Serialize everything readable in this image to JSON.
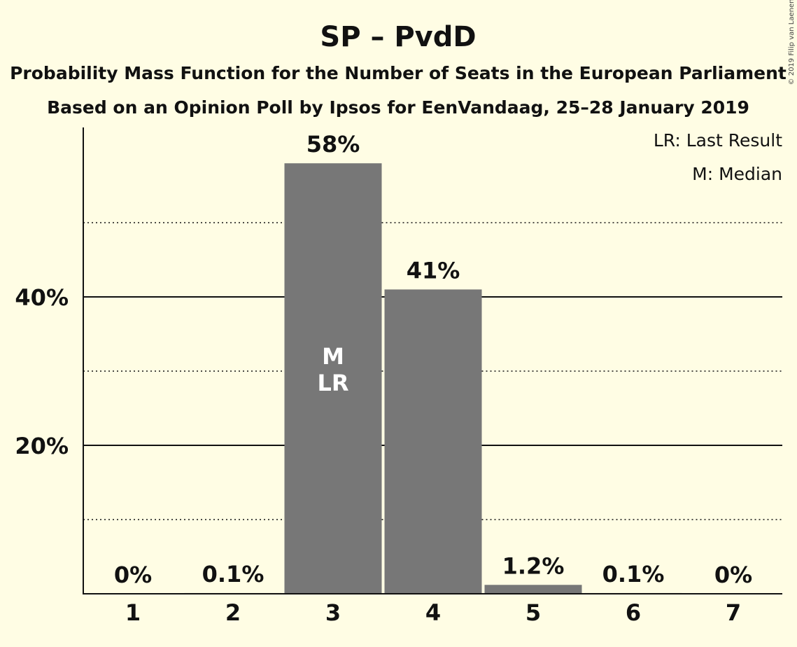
{
  "chart_data": {
    "type": "bar",
    "title": "SP – PvdD",
    "subtitle_1": "Probability Mass Function for the Number of Seats in the European Parliament",
    "subtitle_2": "Based on an Opinion Poll by Ipsos for EenVandaag, 25–28 January 2019",
    "categories": [
      "1",
      "2",
      "3",
      "4",
      "5",
      "6",
      "7"
    ],
    "values": [
      0,
      0.1,
      58,
      41,
      1.2,
      0.1,
      0
    ],
    "value_labels": [
      "0%",
      "0.1%",
      "58%",
      "41%",
      "1.2%",
      "0.1%",
      "0%"
    ],
    "y_ticks": [
      20,
      40
    ],
    "y_tick_labels": [
      "20%",
      "40%"
    ],
    "minor_gridlines": [
      10,
      30,
      50
    ],
    "ylim": [
      0,
      63
    ],
    "median_category": "3",
    "last_result_category": "3",
    "bar_annotation_median": "M",
    "bar_annotation_last_result": "LR",
    "legend": [
      "LR: Last Result",
      "M: Median"
    ],
    "legend_position": "top-right",
    "copyright": "© 2019 Filip van Laenen",
    "colors": {
      "background": "#FFFDE4",
      "bar": "#777777",
      "text": "#111111"
    }
  }
}
